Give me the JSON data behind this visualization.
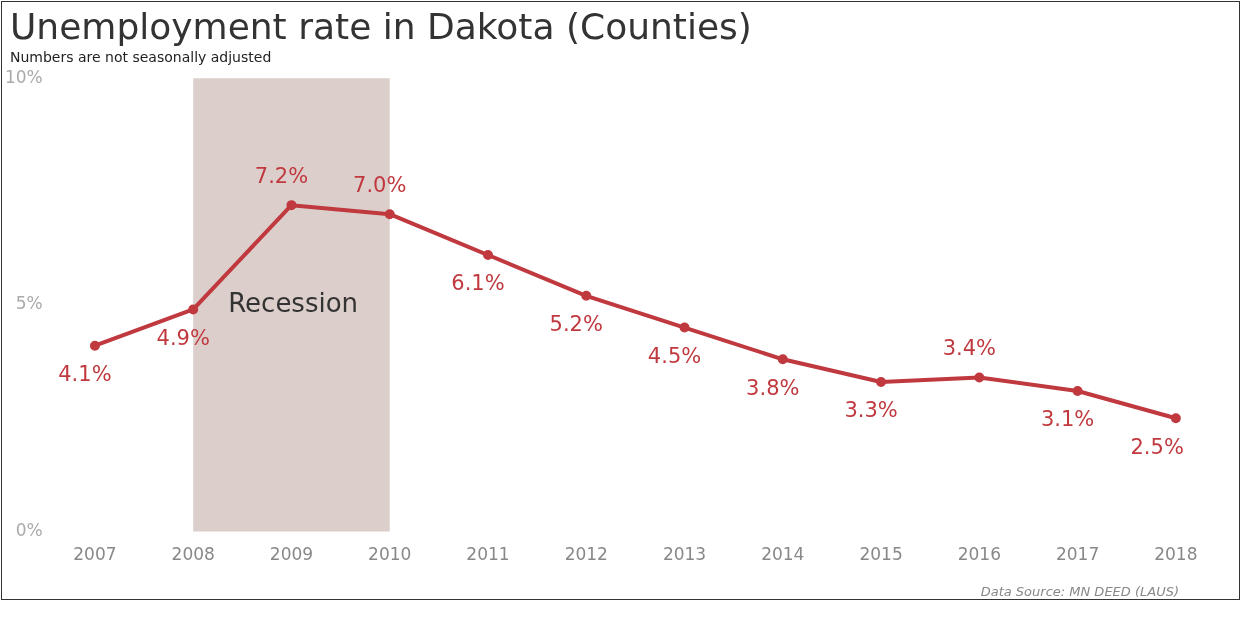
{
  "chart_data": {
    "type": "line",
    "title": "Unemployment rate in Dakota (Counties)",
    "subtitle": "Numbers are not seasonally adjusted",
    "categories": [
      "2007",
      "2008",
      "2009",
      "2010",
      "2011",
      "2012",
      "2013",
      "2014",
      "2015",
      "2016",
      "2017",
      "2018"
    ],
    "series": [
      {
        "color": "#c0393f",
        "values": [
          4.1,
          4.9,
          7.2,
          7.0,
          6.1,
          5.2,
          4.5,
          3.8,
          3.3,
          3.4,
          3.1,
          2.5
        ]
      }
    ],
    "value_labels": [
      "4.1%",
      "4.9%",
      "7.2%",
      "7.0%",
      "6.1%",
      "5.2%",
      "4.5%",
      "3.8%",
      "3.3%",
      "3.4%",
      "3.1%",
      "2.5%"
    ],
    "ylim": [
      0,
      10
    ],
    "yticks": [
      {
        "value": 0,
        "label": "0%"
      },
      {
        "value": 5,
        "label": "5%"
      },
      {
        "value": 10,
        "label": "10%"
      }
    ],
    "bands": [
      {
        "axis": "x",
        "from": "2008",
        "to": "2010",
        "label": "Recession",
        "color": "#dccfcb"
      }
    ],
    "marker": "circle",
    "line_style": "solid",
    "grid": false,
    "legend": false,
    "annotations": [
      "Data Source: MN DEED (LAUS)"
    ]
  }
}
